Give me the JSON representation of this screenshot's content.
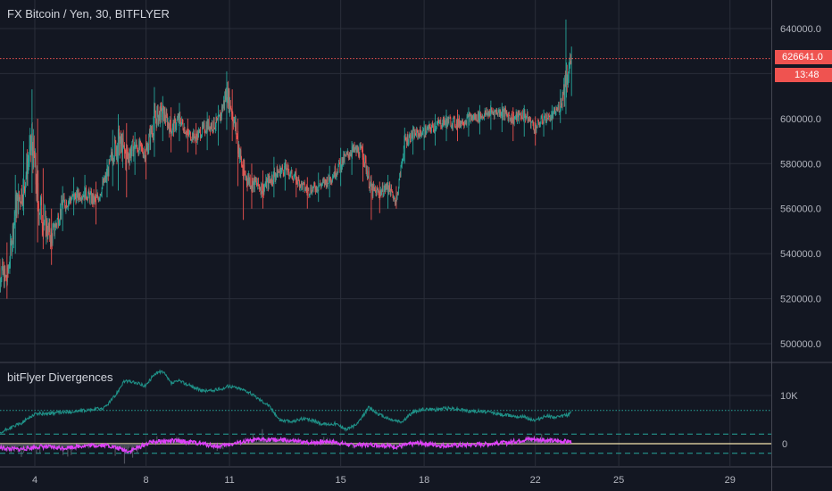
{
  "header": {
    "title": "FX Bitcoin / Yen, 30, BITFLYER"
  },
  "panel": {
    "title": "bitFlyer Divergences"
  },
  "price_tag": "626641.0",
  "price_ghost": "62",
  "time_tag": "13:48",
  "colors": {
    "up": "#26a69a",
    "down": "#ef5350",
    "bg": "#131722",
    "grid": "#2a2e39",
    "osc": "#1f8f86",
    "histogram": "#e040fb",
    "zero": "#f5e6b0",
    "band": "#26a69a"
  },
  "chart_data": [
    {
      "type": "candlestick",
      "title": "FX Bitcoin / Yen, 30, BITFLYER",
      "x_ticks": [
        "4",
        "8",
        "11",
        "15",
        "18",
        "22",
        "25",
        "29"
      ],
      "y_ticks": [
        "500000.0",
        "520000.0",
        "540000.0",
        "560000.0",
        "580000.0",
        "600000.0",
        "620000.0",
        "640000.0"
      ],
      "ylim": [
        495000,
        650000
      ],
      "last_price": 626641.0,
      "path_x_days": [
        2.6,
        3.0,
        3.3,
        3.6,
        3.9,
        4.1,
        4.3,
        4.6,
        5.0,
        5.4,
        5.8,
        6.2,
        6.6,
        6.8,
        7.0,
        7.3,
        7.6,
        8.0,
        8.3,
        8.6,
        8.9,
        9.2,
        9.5,
        9.8,
        10.2,
        10.6,
        10.9,
        11.1,
        11.3,
        11.5,
        11.8,
        12.2,
        12.6,
        13.0,
        13.4,
        13.8,
        14.2,
        14.6,
        15.0,
        15.4,
        15.8,
        16.1,
        16.4,
        16.7,
        17.0,
        17.3,
        17.6,
        18.0,
        18.4,
        18.8,
        19.2,
        19.6,
        20.0,
        20.4,
        20.8,
        21.2,
        21.6,
        22.0,
        22.3,
        22.6,
        22.9,
        23.1,
        23.3
      ],
      "path_close": [
        535000,
        528000,
        560000,
        570000,
        590000,
        565000,
        555000,
        547000,
        562000,
        565000,
        567000,
        563000,
        575000,
        585000,
        590000,
        583000,
        588000,
        585000,
        600000,
        603000,
        595000,
        600000,
        593000,
        592000,
        597000,
        598000,
        612000,
        603000,
        590000,
        575000,
        572000,
        569000,
        575000,
        578000,
        573000,
        568000,
        570000,
        573000,
        580000,
        586000,
        585000,
        568000,
        567000,
        570000,
        563000,
        590000,
        593000,
        594000,
        597000,
        599000,
        598000,
        600000,
        601000,
        603000,
        603000,
        600000,
        602000,
        596000,
        600000,
        601000,
        606000,
        618000,
        626641
      ],
      "path_high": [
        542000,
        545000,
        575000,
        590000,
        613000,
        600000,
        578000,
        560000,
        570000,
        574000,
        575000,
        572000,
        582000,
        595000,
        602000,
        598000,
        594000,
        593000,
        614000,
        610000,
        605000,
        607000,
        600000,
        598000,
        603000,
        606000,
        621000,
        613000,
        600000,
        582000,
        580000,
        577000,
        583000,
        582000,
        578000,
        574000,
        576000,
        579000,
        587000,
        590000,
        589000,
        575000,
        572000,
        575000,
        570000,
        596000,
        597000,
        599000,
        602000,
        604000,
        604000,
        605000,
        606000,
        608000,
        607000,
        605000,
        606000,
        601000,
        604000,
        606000,
        613000,
        644000,
        632000
      ],
      "path_low": [
        500000,
        520000,
        540000,
        557000,
        567000,
        545000,
        542000,
        535000,
        550000,
        557000,
        560000,
        553000,
        565000,
        570000,
        568000,
        565000,
        575000,
        573000,
        583000,
        590000,
        585000,
        590000,
        585000,
        584000,
        586000,
        588000,
        595000,
        590000,
        570000,
        555000,
        560000,
        560000,
        565000,
        568000,
        565000,
        560000,
        563000,
        565000,
        570000,
        575000,
        572000,
        555000,
        558000,
        560000,
        560000,
        580000,
        584000,
        586000,
        588000,
        590000,
        590000,
        592000,
        593000,
        595000,
        594000,
        590000,
        592000,
        588000,
        592000,
        595000,
        598000,
        602000,
        610000
      ]
    },
    {
      "type": "line",
      "title": "bitFlyer Divergences",
      "y_ticks": [
        "0",
        "10K"
      ],
      "ylim": [
        -5500,
        16000
      ],
      "bands": [
        -2000,
        2000,
        6900
      ],
      "line_x_days": [
        2.6,
        3.0,
        3.5,
        4.0,
        4.5,
        5.0,
        5.5,
        6.0,
        6.5,
        6.9,
        7.2,
        7.5,
        8.0,
        8.3,
        8.6,
        8.9,
        9.2,
        9.6,
        10.0,
        10.4,
        10.8,
        11.0,
        11.3,
        11.6,
        12.0,
        12.4,
        12.8,
        13.2,
        13.6,
        14.0,
        14.4,
        14.8,
        15.2,
        15.6,
        16.0,
        16.4,
        16.8,
        17.2,
        17.6,
        18.0,
        18.4,
        18.8,
        19.2,
        19.6,
        20.0,
        20.4,
        20.8,
        21.2,
        21.6,
        22.0,
        22.4,
        22.8,
        23.2,
        23.3
      ],
      "line_values": [
        1500,
        3000,
        4200,
        6200,
        6300,
        6500,
        6700,
        7000,
        7400,
        10000,
        13000,
        12800,
        12000,
        14500,
        15000,
        12500,
        13000,
        12000,
        11000,
        11000,
        11500,
        12000,
        11500,
        11000,
        9500,
        8000,
        5000,
        4500,
        5200,
        4800,
        4000,
        4200,
        3000,
        4000,
        7500,
        6000,
        5000,
        4500,
        6500,
        7200,
        7000,
        7400,
        7200,
        6800,
        6700,
        6500,
        6000,
        5800,
        5500,
        4800,
        5800,
        5500,
        6000,
        6900
      ],
      "hist_x_days": [
        2.6,
        3.4,
        4.2,
        5.0,
        5.8,
        6.6,
        7.4,
        8.2,
        9.0,
        9.8,
        10.6,
        11.4,
        12.2,
        13.0,
        13.8,
        14.6,
        15.4,
        16.2,
        17.0,
        17.8,
        18.6,
        19.4,
        20.2,
        21.0,
        21.8,
        22.6,
        23.3
      ],
      "hist_values": [
        -800,
        -1200,
        -600,
        -900,
        -400,
        -300,
        -1600,
        400,
        600,
        200,
        -600,
        300,
        900,
        700,
        200,
        500,
        -300,
        -200,
        -600,
        200,
        -400,
        -300,
        -100,
        200,
        1000,
        600,
        400
      ]
    }
  ]
}
